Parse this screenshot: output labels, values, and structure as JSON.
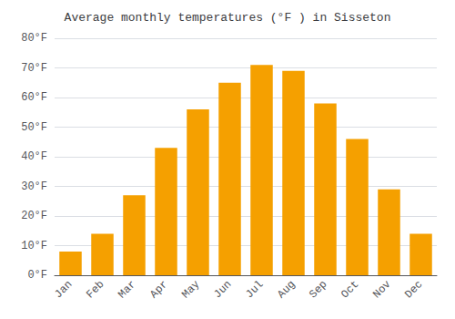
{
  "chart_data": {
    "type": "bar",
    "title": "Average monthly temperatures (°F ) in Sisseton",
    "categories": [
      "Jan",
      "Feb",
      "Mar",
      "Apr",
      "May",
      "Jun",
      "Jul",
      "Aug",
      "Sep",
      "Oct",
      "Nov",
      "Dec"
    ],
    "values": [
      8,
      14,
      27,
      43,
      56,
      65,
      71,
      69,
      58,
      46,
      29,
      14
    ],
    "color": "#F5A000",
    "ylim": [
      0,
      80
    ],
    "yticks": [
      {
        "value": 0,
        "label": "0°F"
      },
      {
        "value": 10,
        "label": "10°F"
      },
      {
        "value": 20,
        "label": "20°F"
      },
      {
        "value": 30,
        "label": "30°F"
      },
      {
        "value": 40,
        "label": "40°F"
      },
      {
        "value": 50,
        "label": "50°F"
      },
      {
        "value": 60,
        "label": "60°F"
      },
      {
        "value": 70,
        "label": "70°F"
      },
      {
        "value": 80,
        "label": "80°F"
      }
    ],
    "grid": true
  }
}
